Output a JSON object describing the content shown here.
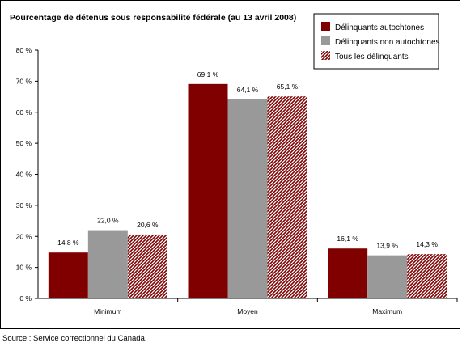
{
  "chart_data": {
    "type": "bar",
    "title": "Pourcentage de détenus sous responsabilité fédérale (au 13 avril 2008)",
    "categories": [
      "Minimum",
      "Moyen",
      "Maximum"
    ],
    "series": [
      {
        "name": "Délinquants autochtones",
        "values": [
          14.8,
          69.1,
          16.1
        ],
        "labels": [
          "14,8 %",
          "69,1 %",
          "16,1 %"
        ],
        "color": "#800000",
        "pattern": "solid"
      },
      {
        "name": "Délinquants non autochtones",
        "values": [
          22.0,
          64.1,
          13.9
        ],
        "labels": [
          "22,0 %",
          "64,1 %",
          "13,9 %"
        ],
        "color": "#999999",
        "pattern": "solid"
      },
      {
        "name": "Tous les délinquants",
        "values": [
          20.6,
          65.1,
          14.3
        ],
        "labels": [
          "20,6 %",
          "65,1 %",
          "14,3 %"
        ],
        "color": "#800000",
        "pattern": "diagonal-stripes"
      }
    ],
    "ylim": [
      0,
      80
    ],
    "yticks": [
      0,
      10,
      20,
      30,
      40,
      50,
      60,
      70,
      80
    ],
    "ytick_labels": [
      "0 %",
      "10 %",
      "20 %",
      "30 %",
      "40 %",
      "50 %",
      "60 %",
      "70 %",
      "80 %"
    ],
    "xlabel": "",
    "ylabel": "",
    "grid": false,
    "legend_position": "top-right"
  },
  "source": "Source : Service correctionnel du Canada."
}
